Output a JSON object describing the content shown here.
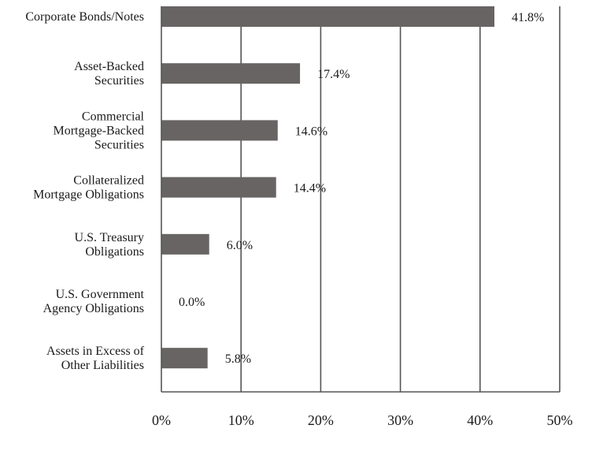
{
  "chart_data": {
    "type": "bar",
    "orientation": "horizontal",
    "categories": [
      [
        "Corporate Bonds/Notes"
      ],
      [
        "Asset-Backed",
        "Securities"
      ],
      [
        "Commercial",
        "Mortgage-Backed",
        "Securities"
      ],
      [
        "Collateralized",
        "Mortgage Obligations"
      ],
      [
        "U.S. Treasury",
        "Obligations"
      ],
      [
        "U.S. Government",
        "Agency Obligations"
      ],
      [
        "Assets in Excess of",
        "Other Liabilities"
      ]
    ],
    "values": [
      41.8,
      17.4,
      14.6,
      14.4,
      6.0,
      0.0,
      5.8
    ],
    "value_labels": [
      "41.8%",
      "17.4%",
      "14.6%",
      "14.4%",
      "6.0%",
      "0.0%",
      "5.8%"
    ],
    "xlim": [
      0,
      50
    ],
    "xticks": [
      0,
      10,
      20,
      30,
      40,
      50
    ],
    "xtick_labels": [
      "0%",
      "10%",
      "20%",
      "30%",
      "40%",
      "50%"
    ],
    "grid": "vertical",
    "bar_color": "#686464",
    "axis_color": "#555555"
  }
}
